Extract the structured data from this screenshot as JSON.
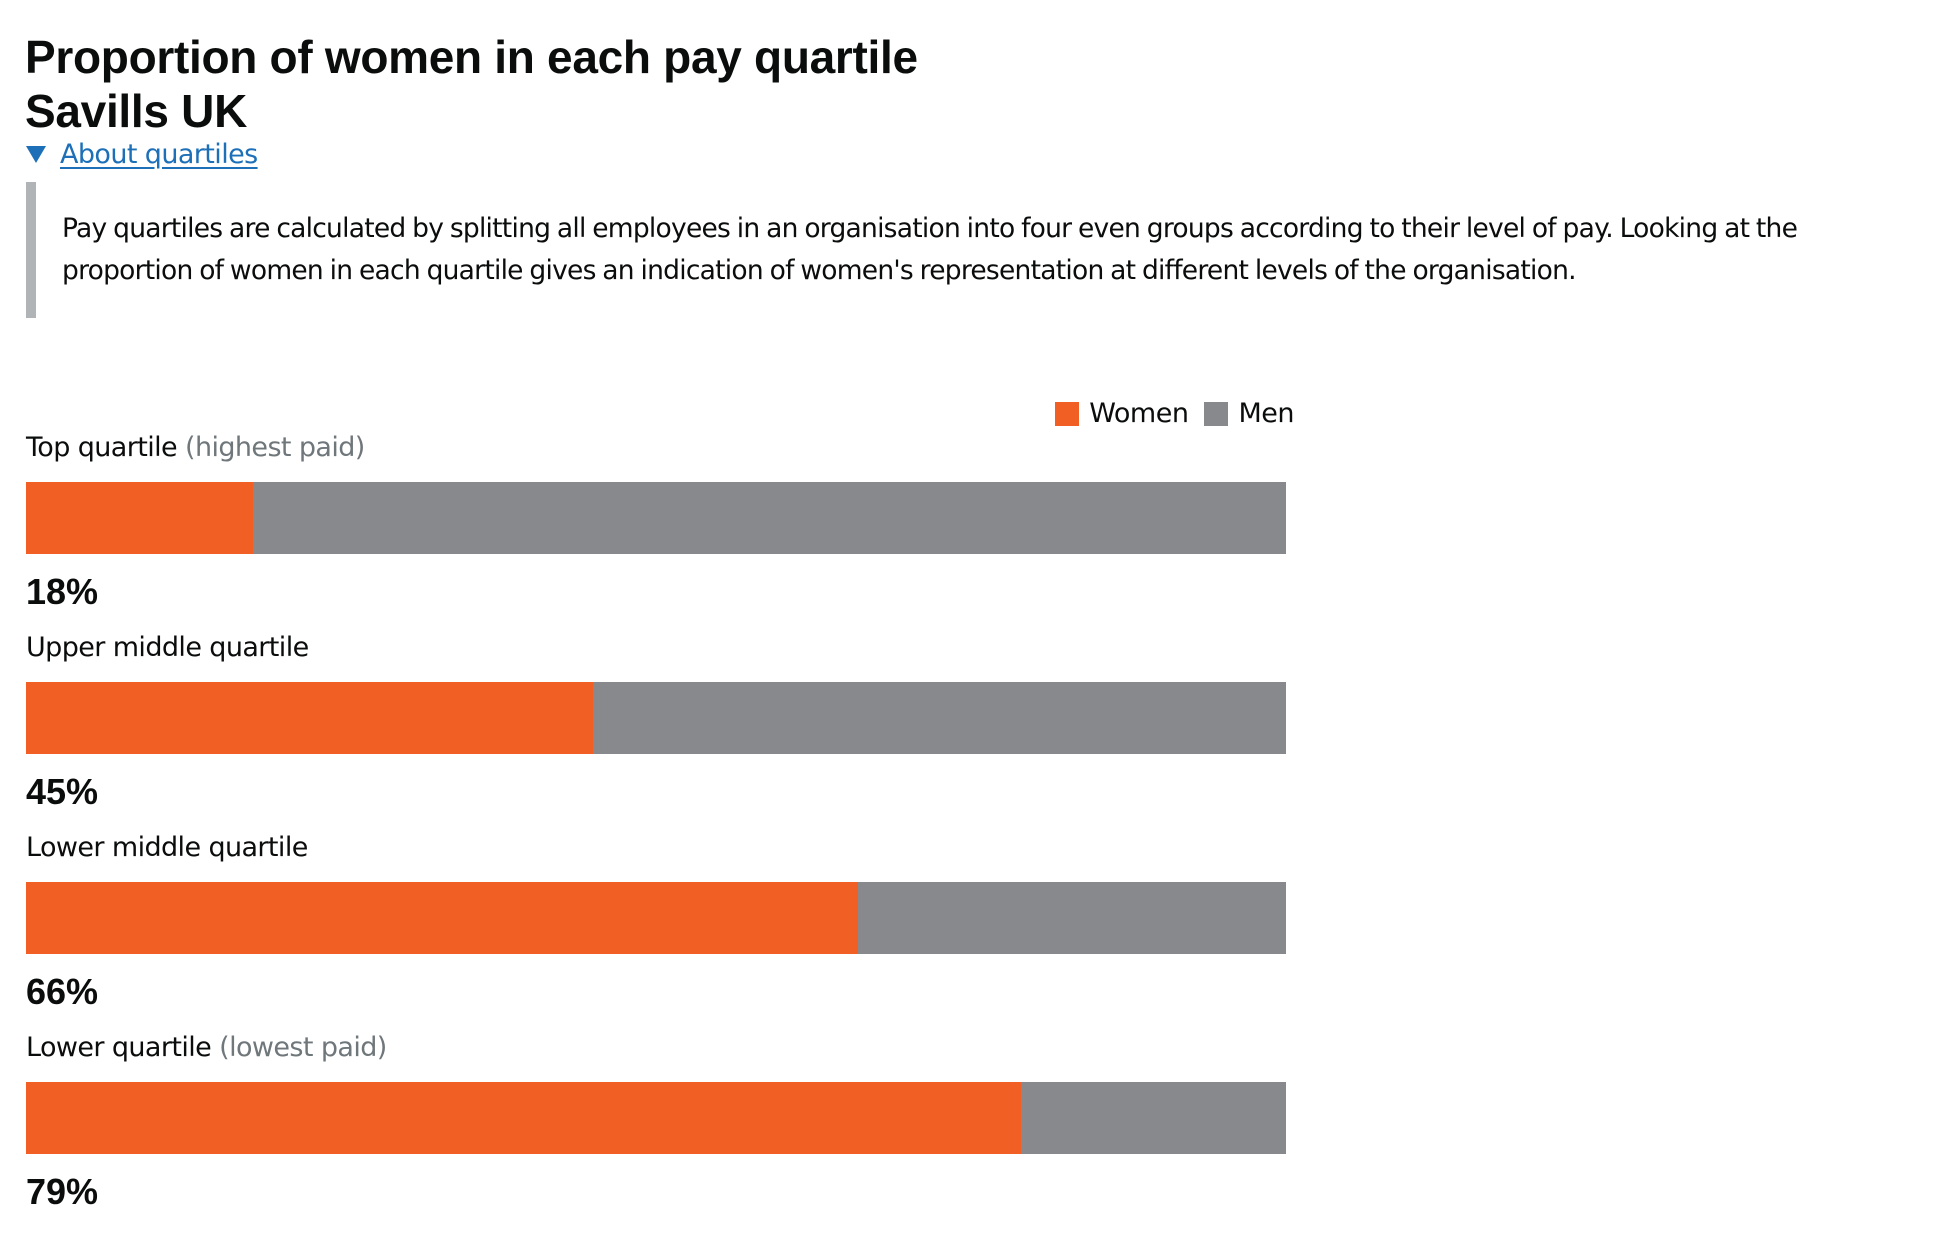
{
  "header": {
    "title_line1": "Proportion of women in each pay quartile",
    "title_line2": "Savills UK",
    "details_toggle_icon": "triangle-down-icon",
    "details_link": "About quartiles",
    "details_text": "Pay quartiles are calculated by splitting all employees in an organisation into four even groups according to their level of pay. Looking at the proportion of women in each quartile gives an indication of women's representation at different levels of the organisation."
  },
  "colors": {
    "women": "#f15f24",
    "men": "#88898d",
    "link": "#1d70b8",
    "inset_border": "#b1b4b6",
    "secondary_text": "#6f777b"
  },
  "chart_data": {
    "type": "bar",
    "orientation": "horizontal-stacked-100",
    "title": "Proportion of women in each pay quartile",
    "subtitle": "Savills UK",
    "legend": [
      "Women",
      "Men"
    ],
    "legend_position": "top-right",
    "categories": [
      "Top quartile (highest paid)",
      "Upper middle quartile",
      "Lower middle quartile",
      "Lower quartile (lowest paid)"
    ],
    "series": [
      {
        "name": "Women",
        "values": [
          18,
          45,
          66,
          79
        ]
      },
      {
        "name": "Men",
        "values": [
          82,
          55,
          34,
          21
        ]
      }
    ],
    "value_labels": [
      "18%",
      "45%",
      "66%",
      "79%"
    ],
    "xlim": [
      0,
      100
    ],
    "unit": "%",
    "grid": false
  },
  "quartiles": [
    {
      "label": "Top quartile",
      "qualifier": "(highest paid)",
      "women_pct": 18,
      "pct_label": "18%"
    },
    {
      "label": "Upper middle quartile",
      "qualifier": "",
      "women_pct": 45,
      "pct_label": "45%"
    },
    {
      "label": "Lower middle quartile",
      "qualifier": "",
      "women_pct": 66,
      "pct_label": "66%"
    },
    {
      "label": "Lower quartile",
      "qualifier": "(lowest paid)",
      "women_pct": 79,
      "pct_label": "79%"
    }
  ],
  "legend": {
    "women_label": "Women",
    "men_label": "Men"
  }
}
